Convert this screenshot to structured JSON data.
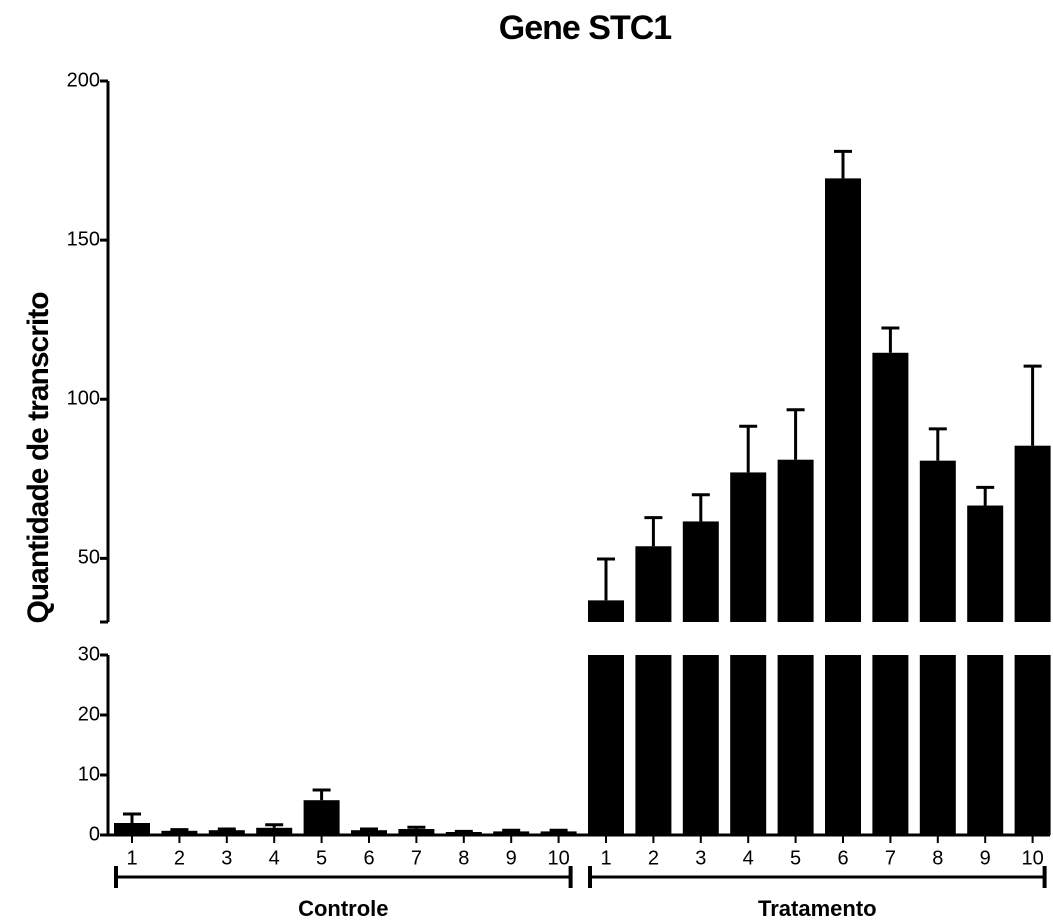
{
  "chart_data": {
    "type": "bar",
    "title": "Gene STC1",
    "y_label": "Quantidade de transcrito",
    "color": "#000000",
    "y_segments": [
      {
        "ylim": [
          0,
          30
        ],
        "yticks": [
          0,
          10,
          20,
          30
        ]
      },
      {
        "ylim": [
          30,
          200
        ],
        "yticks": [
          50,
          100,
          150,
          200
        ]
      }
    ],
    "groups": [
      {
        "name": "Controle",
        "categories": [
          "1",
          "2",
          "3",
          "4",
          "5",
          "6",
          "7",
          "8",
          "9",
          "10"
        ],
        "values": [
          2,
          0.7,
          0.8,
          1.2,
          5.8,
          0.8,
          1,
          0.5,
          0.6,
          0.6
        ],
        "errors": [
          1.5,
          0.2,
          0.2,
          0.5,
          1.7,
          0.2,
          0.3,
          0.1,
          0.2,
          0.2
        ]
      },
      {
        "name": "Tratamento",
        "categories": [
          "1",
          "2",
          "3",
          "4",
          "5",
          "6",
          "7",
          "8",
          "9",
          "10"
        ],
        "values": [
          36.8,
          53.8,
          61.6,
          77,
          81,
          169.4,
          114.6,
          80.7,
          66.6,
          85.4
        ],
        "errors": [
          13,
          9,
          8.4,
          14.5,
          15.7,
          8.5,
          7.8,
          10,
          5.7,
          25
        ]
      }
    ]
  }
}
